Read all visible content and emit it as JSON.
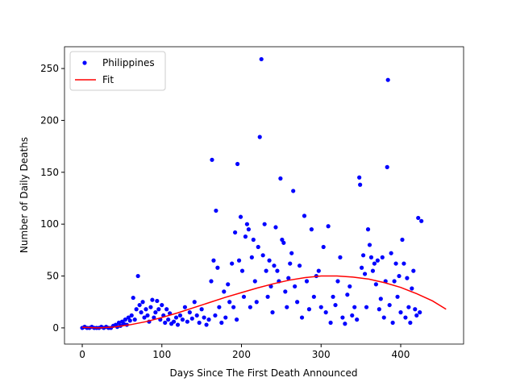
{
  "chart_data": {
    "type": "scatter",
    "xlabel": "Days Since The First Death Announced",
    "ylabel": "Number of Daily Deaths",
    "xlim": [
      -22.3,
      479
    ],
    "ylim": [
      -15.6,
      271
    ],
    "xticks": [
      0,
      100,
      200,
      300,
      400
    ],
    "yticks": [
      0,
      50,
      100,
      150,
      200,
      250
    ],
    "legend": "upper left",
    "series": [
      {
        "name": "Philippines",
        "color": "blue",
        "mode": "markers",
        "x": [
          0,
          3,
          6,
          9,
          12,
          15,
          18,
          21,
          24,
          27,
          30,
          33,
          36,
          39,
          42,
          44,
          46,
          48,
          50,
          52,
          54,
          56,
          58,
          60,
          62,
          64,
          66,
          68,
          70,
          72,
          74,
          76,
          78,
          80,
          82,
          84,
          86,
          88,
          90,
          92,
          94,
          96,
          98,
          100,
          102,
          104,
          106,
          108,
          110,
          112,
          115,
          118,
          120,
          123,
          126,
          129,
          132,
          135,
          138,
          141,
          144,
          147,
          150,
          153,
          156,
          159,
          162,
          163,
          165,
          167,
          168,
          170,
          172,
          175,
          178,
          180,
          183,
          185,
          188,
          190,
          192,
          194,
          195,
          197,
          199,
          201,
          203,
          205,
          207,
          209,
          211,
          213,
          215,
          217,
          219,
          221,
          223,
          225,
          227,
          229,
          231,
          233,
          235,
          237,
          239,
          241,
          243,
          245,
          247,
          249,
          251,
          253,
          255,
          257,
          259,
          261,
          263,
          265,
          267,
          270,
          273,
          276,
          279,
          282,
          285,
          288,
          291,
          294,
          297,
          300,
          303,
          306,
          309,
          312,
          315,
          318,
          321,
          324,
          327,
          330,
          333,
          336,
          339,
          342,
          345,
          348,
          349,
          351,
          353,
          355,
          357,
          359,
          361,
          363,
          365,
          367,
          369,
          371,
          373,
          375,
          377,
          379,
          381,
          383,
          384,
          386,
          388,
          390,
          392,
          394,
          396,
          398,
          400,
          402,
          404,
          406,
          408,
          410,
          412,
          414,
          416,
          418,
          420,
          422,
          424,
          426
        ],
        "values": [
          0,
          1,
          0,
          0,
          1,
          0,
          0,
          0,
          1,
          0,
          1,
          0,
          0,
          2,
          3,
          1,
          5,
          2,
          6,
          4,
          8,
          3,
          10,
          7,
          12,
          29,
          8,
          18,
          50,
          22,
          15,
          25,
          10,
          18,
          12,
          6,
          20,
          27,
          10,
          15,
          26,
          18,
          8,
          22,
          12,
          5,
          18,
          8,
          14,
          4,
          6,
          10,
          3,
          12,
          8,
          20,
          6,
          15,
          9,
          25,
          12,
          5,
          18,
          10,
          3,
          8,
          45,
          162,
          65,
          12,
          113,
          58,
          20,
          5,
          35,
          10,
          42,
          25,
          62,
          20,
          92,
          8,
          158,
          65,
          107,
          55,
          30,
          88,
          100,
          95,
          20,
          68,
          85,
          45,
          25,
          78,
          184,
          259,
          70,
          100,
          55,
          30,
          65,
          40,
          15,
          60,
          97,
          55,
          45,
          144,
          85,
          82,
          35,
          20,
          48,
          62,
          72,
          132,
          40,
          25,
          60,
          10,
          108,
          45,
          18,
          95,
          30,
          50,
          55,
          20,
          78,
          15,
          98,
          5,
          30,
          22,
          45,
          68,
          10,
          4,
          32,
          40,
          12,
          20,
          8,
          145,
          138,
          58,
          70,
          52,
          20,
          95,
          80,
          68,
          55,
          62,
          42,
          65,
          18,
          28,
          68,
          10,
          45,
          155,
          239,
          22,
          72,
          5,
          45,
          62,
          30,
          50,
          15,
          85,
          62,
          10,
          48,
          20,
          5,
          38,
          55,
          18,
          12,
          106,
          15,
          103
        ]
      },
      {
        "name": "Fit",
        "color": "red",
        "mode": "line",
        "x": [
          0,
          20,
          40,
          60,
          80,
          100,
          120,
          140,
          160,
          180,
          200,
          220,
          240,
          260,
          280,
          300,
          320,
          340,
          360,
          380,
          400,
          420,
          440,
          457
        ],
        "values": [
          0.5,
          0,
          0.8,
          3,
          6,
          10,
          14.5,
          19.5,
          24.5,
          29.5,
          34,
          38.5,
          42.5,
          46,
          48.5,
          50,
          50,
          49,
          47,
          43.5,
          39,
          33,
          26,
          18
        ]
      }
    ]
  }
}
